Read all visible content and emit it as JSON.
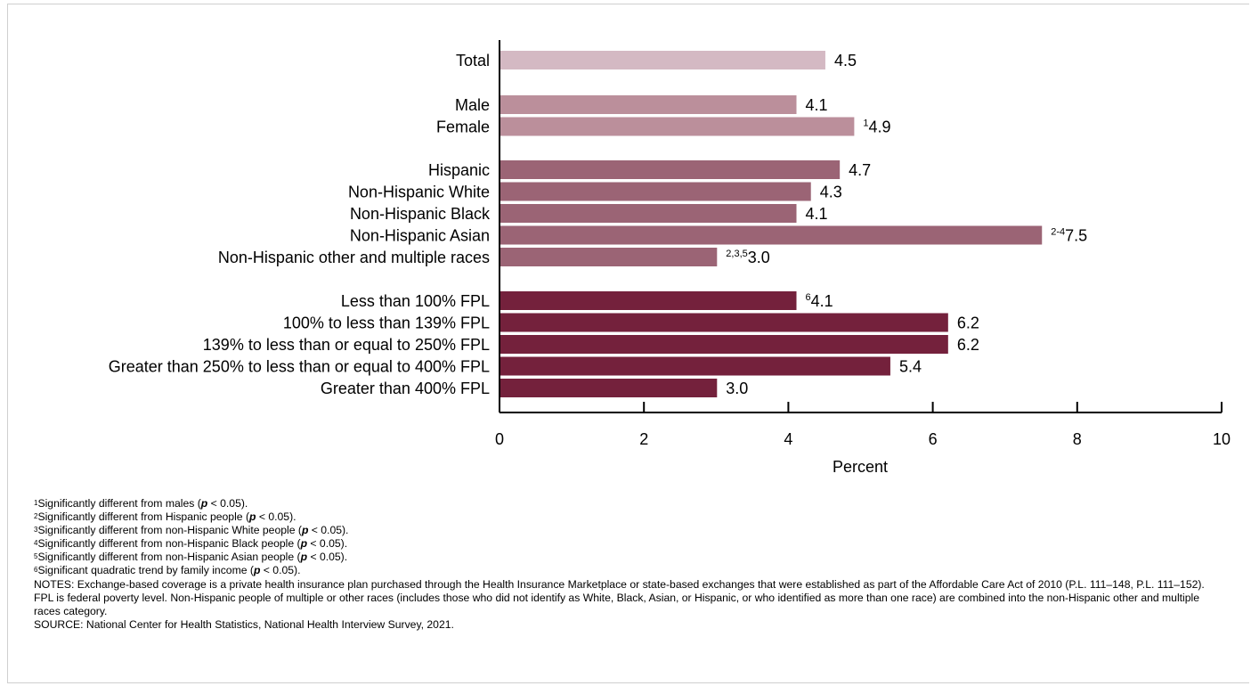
{
  "chart_data": {
    "type": "bar",
    "orientation": "horizontal",
    "xlabel": "Percent",
    "xlim": [
      0,
      10
    ],
    "xticks": [
      "0",
      "2",
      "4",
      "6",
      "8",
      "10"
    ],
    "grid": false,
    "groups": [
      {
        "color": "#d4b9c3",
        "bars": [
          {
            "label": "Total",
            "value": 4.5,
            "value_label": "4.5",
            "footnote": ""
          }
        ]
      },
      {
        "color": "#bb8f9b",
        "bars": [
          {
            "label": "Male",
            "value": 4.1,
            "value_label": "4.1",
            "footnote": ""
          },
          {
            "label": "Female",
            "value": 4.9,
            "value_label": "4.9",
            "footnote": "1"
          }
        ]
      },
      {
        "color": "#9b6475",
        "bars": [
          {
            "label": "Hispanic",
            "value": 4.7,
            "value_label": "4.7",
            "footnote": ""
          },
          {
            "label": "Non-Hispanic White",
            "value": 4.3,
            "value_label": "4.3",
            "footnote": ""
          },
          {
            "label": "Non-Hispanic Black",
            "value": 4.1,
            "value_label": "4.1",
            "footnote": ""
          },
          {
            "label": "Non-Hispanic Asian",
            "value": 7.5,
            "value_label": "7.5",
            "footnote": "2-4"
          },
          {
            "label": "Non-Hispanic other and multiple races",
            "value": 3.0,
            "value_label": "3.0",
            "footnote": "2,3,5"
          }
        ]
      },
      {
        "color": "#74213c",
        "bars": [
          {
            "label": "Less than 100% FPL",
            "value": 4.1,
            "value_label": "4.1",
            "footnote": "6"
          },
          {
            "label": "100% to less than 139% FPL",
            "value": 6.2,
            "value_label": "6.2",
            "footnote": ""
          },
          {
            "label": "139% to less than or equal to 250% FPL",
            "value": 6.2,
            "value_label": "6.2",
            "footnote": ""
          },
          {
            "label": "Greater than 250% to less than or equal to 400% FPL",
            "value": 5.4,
            "value_label": "5.4",
            "footnote": ""
          },
          {
            "label": "Greater than 400% FPL",
            "value": 3.0,
            "value_label": "3.0",
            "footnote": ""
          }
        ]
      }
    ]
  },
  "footnotes": [
    {
      "mark": "1",
      "before": "Significantly different from males (",
      "p": "p",
      "after": " < 0.05)."
    },
    {
      "mark": "2",
      "before": "Significantly different from Hispanic people (",
      "p": "p",
      "after": " < 0.05)."
    },
    {
      "mark": "3",
      "before": "Significantly different from non-Hispanic White people (",
      "p": "p",
      "after": " < 0.05)."
    },
    {
      "mark": "4",
      "before": "Significantly different from non-Hispanic Black people (",
      "p": "p",
      "after": " < 0.05)."
    },
    {
      "mark": "5",
      "before": "Significantly different from non-Hispanic Asian people (",
      "p": "p",
      "after": " < 0.05)."
    },
    {
      "mark": "6",
      "before": "Significant quadratic trend by family income (",
      "p": "p",
      "after": " < 0.05)."
    }
  ],
  "notes_text": "NOTES: Exchange-based coverage is a private health insurance plan purchased through the Health Insurance Marketplace or state-based exchanges that were established as part of the Affordable Care Act of 2010 (P.L. 111–148, P.L. 111–152). FPL is federal poverty level. Non-Hispanic people of multiple or other races (includes those who did not identify as White, Black, Asian, or Hispanic, or who identified as more than one race) are combined into the non-Hispanic other and multiple races category.",
  "source_text": "SOURCE: National Center for Health Statistics, National Health Interview Survey, 2021."
}
